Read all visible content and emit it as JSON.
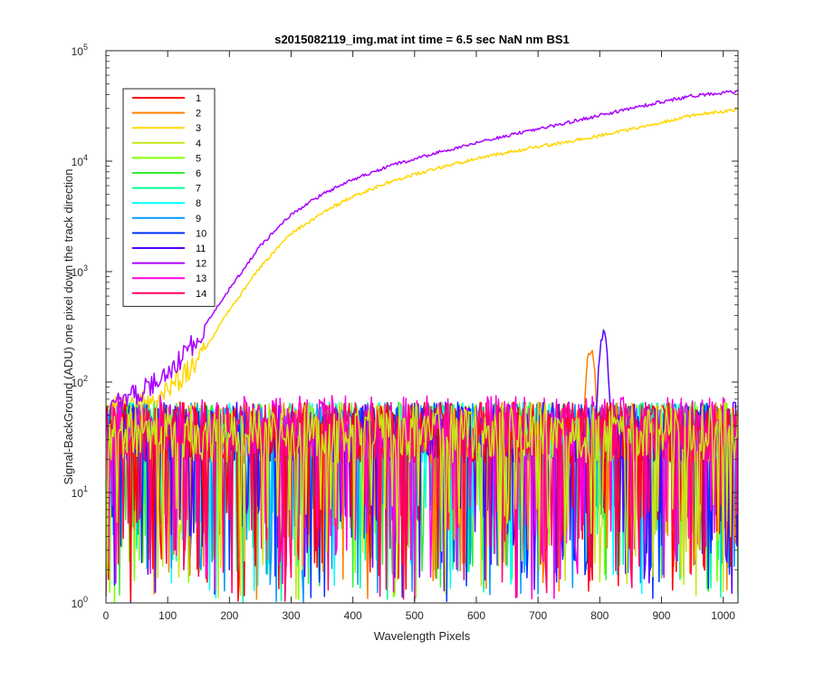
{
  "chart_data": {
    "type": "line",
    "title": "s2015082119_img.mat int time = 6.5 sec  NaN nm BS1",
    "xlabel": "Wavelength Pixels",
    "ylabel": "Signal-BackGround (ADU) one pixel down the track direction",
    "xlim": [
      0,
      1024
    ],
    "ylim": [
      1,
      100000
    ],
    "yscale": "log",
    "xticks": [
      0,
      100,
      200,
      300,
      400,
      500,
      600,
      700,
      800,
      900,
      1000
    ],
    "xtick_labels": [
      "0",
      "100",
      "200",
      "300",
      "400",
      "500",
      "600",
      "700",
      "800",
      "900",
      "1000"
    ],
    "yticks": [
      1,
      10,
      100,
      1000,
      10000,
      100000
    ],
    "ytick_labels": [
      {
        "base": "10",
        "exp": "0"
      },
      {
        "base": "10",
        "exp": "1"
      },
      {
        "base": "10",
        "exp": "2"
      },
      {
        "base": "10",
        "exp": "3"
      },
      {
        "base": "10",
        "exp": "4"
      },
      {
        "base": "10",
        "exp": "5"
      }
    ],
    "grid": false,
    "legend_position": "top-left",
    "series": [
      {
        "name": "1",
        "color": "#ff0000",
        "kind": "noise",
        "level": 35
      },
      {
        "name": "2",
        "color": "#ff7f00",
        "kind": "noise_peak",
        "level": 35,
        "peak_x": 785,
        "peak_y": 210
      },
      {
        "name": "3",
        "color": "#ffd700",
        "kind": "rise",
        "x": [
          0,
          50,
          100,
          150,
          200,
          250,
          300,
          350,
          400,
          450,
          500,
          550,
          600,
          650,
          700,
          750,
          800,
          850,
          900,
          950,
          1024
        ],
        "y": [
          60,
          65,
          85,
          160,
          450,
          1100,
          2200,
          3400,
          4800,
          6200,
          7600,
          9000,
          10500,
          12000,
          13500,
          15000,
          17000,
          19500,
          22500,
          26000,
          29500
        ]
      },
      {
        "name": "4",
        "color": "#c8e619",
        "kind": "noise",
        "level": 35
      },
      {
        "name": "5",
        "color": "#7fff00",
        "kind": "noise",
        "level": 35
      },
      {
        "name": "6",
        "color": "#33ee33",
        "kind": "noise",
        "level": 35
      },
      {
        "name": "7",
        "color": "#00ff99",
        "kind": "noise",
        "level": 35
      },
      {
        "name": "8",
        "color": "#00ffff",
        "kind": "noise",
        "level": 35
      },
      {
        "name": "9",
        "color": "#0099ff",
        "kind": "noise",
        "level": 35
      },
      {
        "name": "10",
        "color": "#0033ff",
        "kind": "noise",
        "level": 35
      },
      {
        "name": "11",
        "color": "#5500ff",
        "kind": "noise_peak",
        "level": 35,
        "peak_x": 806,
        "peak_y": 280
      },
      {
        "name": "12",
        "color": "#aa00ff",
        "kind": "rise",
        "x": [
          0,
          50,
          100,
          150,
          200,
          250,
          300,
          350,
          400,
          450,
          500,
          550,
          600,
          650,
          700,
          750,
          800,
          850,
          900,
          950,
          1024
        ],
        "y": [
          60,
          80,
          120,
          260,
          700,
          1700,
          3300,
          5000,
          6800,
          8700,
          10500,
          12500,
          14700,
          17000,
          19500,
          22500,
          26000,
          30000,
          34500,
          39000,
          43000
        ]
      },
      {
        "name": "13",
        "color": "#ff00dd",
        "kind": "noise",
        "level": 40
      },
      {
        "name": "14",
        "color": "#ff0066",
        "kind": "noise",
        "level": 35
      }
    ]
  }
}
